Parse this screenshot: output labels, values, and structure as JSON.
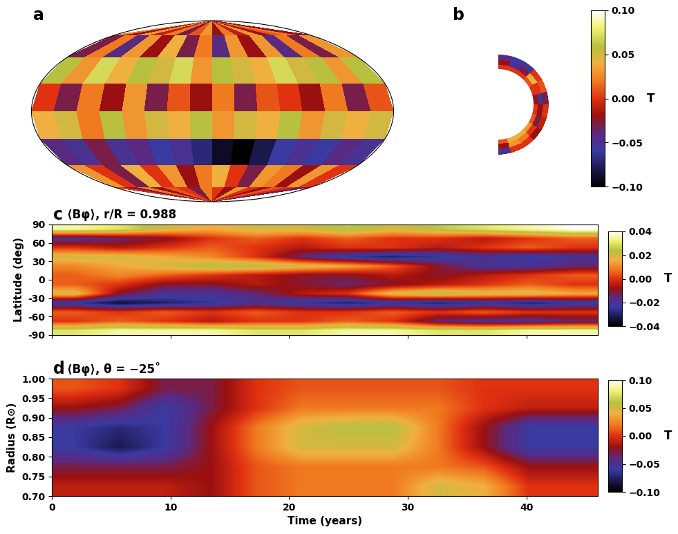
{
  "chart_data": [
    {
      "type": "map",
      "panel": "a",
      "tick_labels": false,
      "color_range": [
        -0.1,
        0.1
      ],
      "cells": [
        [
          0,
          -0.03,
          0.02,
          -0.02,
          0.01,
          0,
          -0.03,
          0.02,
          0,
          -0.02,
          0.03,
          0,
          -0.02,
          0.01,
          0,
          -0.03
        ],
        [
          0.03,
          0,
          -0.03,
          0.04,
          0,
          0.03,
          -0.02,
          0.02,
          0.04,
          0,
          -0.03,
          0.03,
          0.02,
          -0.02,
          0.03,
          0
        ],
        [
          -0.04,
          -0.05,
          -0.03,
          -0.05,
          -0.04,
          -0.06,
          -0.05,
          -0.07,
          -0.09,
          -0.1,
          -0.08,
          -0.06,
          -0.05,
          -0.06,
          -0.04,
          -0.05
        ],
        [
          0.04,
          0.05,
          0.02,
          0.06,
          0.03,
          0.05,
          0.04,
          0.06,
          0.03,
          0.05,
          0.04,
          0.06,
          0.03,
          0.05,
          0.04,
          0.05
        ],
        [
          0,
          -0.03,
          0.02,
          -0.02,
          0.03,
          -0.03,
          0.01,
          -0.02,
          0.02,
          -0.03,
          0.01,
          0,
          -0.02,
          0.02,
          -0.03,
          0.01
        ],
        [
          0.06,
          0.03,
          0.07,
          0.04,
          0.06,
          0.05,
          0.07,
          0.03,
          0.06,
          0.05,
          0.04,
          0.07,
          0.05,
          0.06,
          0.03,
          0.06
        ],
        [
          -0.03,
          0.02,
          -0.04,
          0.03,
          -0.02,
          0.04,
          -0.03,
          0.02,
          -0.04,
          0.03,
          -0.02,
          0.03,
          -0.04,
          0.02,
          -0.03,
          0.03
        ],
        [
          0.02,
          -0.02,
          0.03,
          -0.01,
          0.02,
          -0.03,
          0.01,
          0.03,
          -0.02,
          0.02,
          -0.01,
          0.03,
          -0.02,
          0.01,
          0.02,
          -0.02
        ]
      ]
    },
    {
      "type": "slice",
      "panel": "b",
      "tick_labels": false,
      "rlim": [
        0.7,
        1.0
      ],
      "latlim": [
        -90,
        90
      ],
      "color_range": [
        -0.1,
        0.1
      ],
      "colorbar_ticks": [
        {
          "value": 0.1,
          "label": "0.10"
        },
        {
          "value": 0.05,
          "label": "0.05"
        },
        {
          "value": 0.0,
          "label": "0.00"
        },
        {
          "value": -0.05,
          "label": "−0.05"
        },
        {
          "value": -0.1,
          "label": "−0.10"
        }
      ],
      "colorbar_label": "T",
      "cells": [
        [
          0.01,
          0.04,
          0.04,
          0.03,
          0.01,
          0.0,
          -0.02,
          0.0,
          0.01,
          0.0,
          0.0,
          0.0
        ],
        [
          -0.02,
          0.03,
          0.02,
          0.0,
          -0.03,
          -0.02,
          -0.05,
          0.0,
          0.04,
          -0.03,
          -0.05,
          -0.02
        ],
        [
          -0.05,
          0.0,
          0.0,
          -0.02,
          -0.01,
          0.0,
          -0.03,
          0.01,
          0.0,
          -0.05,
          -0.06,
          -0.04
        ]
      ]
    },
    {
      "type": "heatmap",
      "panel": "c",
      "title": "⟨Bφ⟩, r/R = 0.988",
      "y_label": "Latitude (deg)",
      "tick_labels": "y",
      "xlim": [
        0,
        46
      ],
      "xticks": [
        0,
        10,
        20,
        30,
        40
      ],
      "ylim": [
        -90,
        90
      ],
      "yticks": [
        -90,
        -60,
        -30,
        0,
        30,
        60,
        90
      ],
      "color_range": [
        -0.04,
        0.04
      ],
      "colorbar_ticks": [
        {
          "value": 0.04,
          "label": "0.04"
        },
        {
          "value": 0.02,
          "label": "0.02"
        },
        {
          "value": 0.0,
          "label": "0.00"
        },
        {
          "value": -0.02,
          "label": "−0.02"
        },
        {
          "value": -0.04,
          "label": "−0.04"
        }
      ],
      "colorbar_label": "T",
      "cells": [
        [
          0.03,
          0.035,
          0.035,
          0.035,
          0.03,
          0.03,
          0.035,
          0.035,
          0.03,
          0.03,
          0.035,
          0.035
        ],
        [
          0.0,
          0.005,
          0.0,
          -0.005,
          0.0,
          0.0,
          0.005,
          0.0,
          -0.015,
          -0.02,
          -0.02,
          -0.015
        ],
        [
          0.005,
          0.0,
          0.005,
          0.0,
          0.005,
          0.0,
          0.0,
          0.005,
          0.0,
          0.005,
          0.0,
          0.0
        ],
        [
          -0.025,
          -0.035,
          -0.03,
          -0.025,
          -0.02,
          -0.025,
          -0.03,
          -0.025,
          -0.03,
          -0.025,
          -0.03,
          -0.025
        ],
        [
          0.02,
          -0.01,
          -0.02,
          -0.02,
          -0.015,
          -0.005,
          0.0,
          0.02,
          0.025,
          0.02,
          0.02,
          0.015
        ],
        [
          0.005,
          0.0,
          -0.01,
          -0.01,
          -0.005,
          -0.01,
          -0.015,
          -0.01,
          -0.005,
          0.0,
          0.005,
          0.0
        ],
        [
          0.005,
          0.01,
          0.005,
          0.0,
          -0.005,
          -0.01,
          -0.01,
          -0.005,
          -0.01,
          -0.005,
          0.0,
          0.005
        ],
        [
          0.01,
          0.015,
          0.02,
          0.025,
          0.025,
          0.02,
          0.015,
          0.005,
          -0.01,
          -0.02,
          -0.02,
          -0.015
        ],
        [
          0.02,
          0.02,
          0.015,
          0.01,
          0.0,
          -0.015,
          -0.025,
          -0.03,
          -0.025,
          -0.02,
          -0.025,
          -0.02
        ],
        [
          0.0,
          -0.005,
          0.0,
          0.005,
          0.0,
          -0.005,
          0.0,
          0.0,
          -0.005,
          0.0,
          0.005,
          0.0
        ],
        [
          -0.02,
          -0.015,
          -0.01,
          0.0,
          0.005,
          0.0,
          0.005,
          0.0,
          0.0,
          -0.005,
          0.0,
          0.005
        ],
        [
          0.035,
          0.03,
          0.02,
          0.015,
          0.02,
          0.02,
          0.025,
          0.02,
          0.025,
          0.03,
          0.035,
          0.04
        ]
      ]
    },
    {
      "type": "heatmap",
      "panel": "d",
      "title": "⟨Bφ⟩, θ = −25˚",
      "x_label": "Time (years)",
      "y_label": "Radius (R⊙)",
      "xlim": [
        0,
        46
      ],
      "xticks": [
        0,
        10,
        20,
        30,
        40
      ],
      "ylim": [
        0.7,
        1.0
      ],
      "yticks": [
        {
          "value": 0.7,
          "label": "0.70"
        },
        {
          "value": 0.75,
          "label": "0.75"
        },
        {
          "value": 0.8,
          "label": "0.80"
        },
        {
          "value": 0.85,
          "label": "0.85"
        },
        {
          "value": 0.9,
          "label": "0.90"
        },
        {
          "value": 0.95,
          "label": "0.95"
        },
        {
          "value": 1.0,
          "label": "1.00"
        }
      ],
      "color_range": [
        -0.1,
        0.1
      ],
      "colorbar_ticks": [
        {
          "value": 0.1,
          "label": "0.10"
        },
        {
          "value": 0.05,
          "label": "0.05"
        },
        {
          "value": 0.0,
          "label": "0.00"
        },
        {
          "value": -0.05,
          "label": "−0.05"
        },
        {
          "value": -0.1,
          "label": "−0.10"
        }
      ],
      "colorbar_label": "T",
      "cells": [
        [
          -0.01,
          -0.01,
          -0.01,
          -0.02,
          0.01,
          0.02,
          0.02,
          0.02,
          0.05,
          0.04,
          0.0,
          0.0
        ],
        [
          -0.03,
          -0.03,
          -0.03,
          -0.02,
          0.01,
          0.02,
          0.02,
          0.02,
          0.02,
          0.01,
          -0.02,
          -0.02
        ],
        [
          -0.06,
          -0.08,
          -0.06,
          -0.02,
          0.02,
          0.05,
          0.05,
          0.05,
          0.02,
          -0.02,
          -0.06,
          -0.06
        ],
        [
          -0.06,
          -0.07,
          -0.06,
          -0.02,
          0.02,
          0.05,
          0.06,
          0.06,
          0.02,
          -0.02,
          -0.06,
          -0.06
        ],
        [
          -0.02,
          -0.03,
          -0.06,
          -0.03,
          0.0,
          0.02,
          0.02,
          0.02,
          0.02,
          0.0,
          -0.01,
          -0.01
        ],
        [
          0.01,
          0.0,
          -0.03,
          -0.03,
          0.0,
          0.01,
          0.01,
          0.01,
          0.01,
          0.0,
          0.0,
          0.0
        ]
      ]
    }
  ]
}
